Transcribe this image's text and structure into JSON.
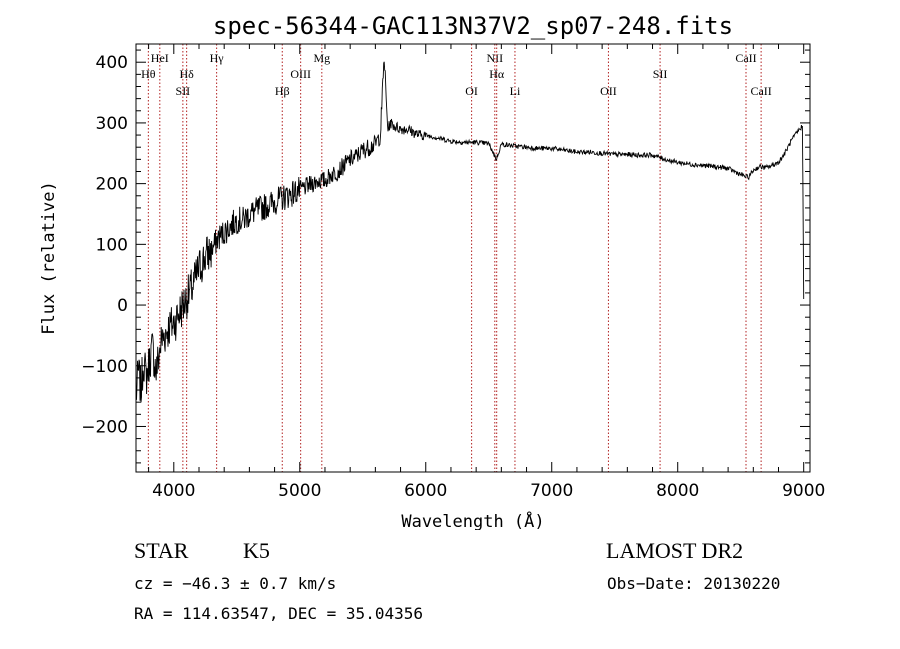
{
  "chart_data": {
    "type": "line",
    "title": "spec-56344-GAC113N37V2_sp07-248.fits",
    "xlabel": "Wavelength (Å)",
    "ylabel": "Flux (relative)",
    "xlim": [
      3700,
      9050
    ],
    "ylim": [
      -275,
      430
    ],
    "xticks": [
      4000,
      5000,
      6000,
      7000,
      8000,
      9000
    ],
    "yticks": [
      -200,
      -100,
      0,
      100,
      200,
      300,
      400
    ],
    "grid": false,
    "series": [
      {
        "x": [
          3700,
          3720,
          3740,
          3760,
          3780,
          3800,
          3830,
          3860,
          3900,
          3950,
          4000,
          4050,
          4100,
          4150,
          4200,
          4250,
          4300,
          4350,
          4400,
          4450,
          4500,
          4550,
          4600,
          4650,
          4700,
          4750,
          4800,
          4850,
          4900,
          4950,
          5000,
          5050,
          5100,
          5150,
          5200,
          5250,
          5300,
          5350,
          5400,
          5450,
          5500,
          5550,
          5600,
          5640,
          5670,
          5690,
          5700,
          5720,
          5750,
          5800,
          5850,
          5900,
          5950,
          6000,
          6100,
          6200,
          6300,
          6400,
          6500,
          6560,
          6600,
          6700,
          6800,
          6900,
          7000,
          7100,
          7200,
          7300,
          7400,
          7500,
          7600,
          7700,
          7800,
          7900,
          8000,
          8100,
          8200,
          8300,
          8400,
          8500,
          8560,
          8600,
          8650,
          8700,
          8750,
          8800,
          8850,
          8900,
          8950,
          8990,
          9000
        ],
        "values": [
          -150,
          -110,
          -140,
          -90,
          -120,
          -100,
          -70,
          -110,
          -60,
          -40,
          -30,
          -10,
          10,
          30,
          60,
          80,
          90,
          110,
          120,
          130,
          140,
          140,
          150,
          155,
          160,
          165,
          170,
          175,
          180,
          185,
          190,
          195,
          200,
          205,
          205,
          215,
          220,
          230,
          240,
          245,
          255,
          260,
          265,
          280,
          410,
          320,
          290,
          300,
          295,
          290,
          290,
          285,
          280,
          280,
          275,
          270,
          268,
          268,
          266,
          240,
          265,
          262,
          260,
          258,
          258,
          255,
          252,
          252,
          250,
          248,
          248,
          247,
          247,
          240,
          235,
          232,
          230,
          228,
          225,
          215,
          210,
          222,
          228,
          226,
          230,
          235,
          250,
          270,
          285,
          295,
          10
        ]
      }
    ],
    "lines": [
      {
        "label": "Hθ",
        "wl": 3798,
        "row": 2
      },
      {
        "label": "HeI",
        "wl": 3889,
        "row": 1
      },
      {
        "label": "SII",
        "wl": 4072,
        "row": 3
      },
      {
        "label": "Hδ",
        "wl": 4102,
        "row": 2
      },
      {
        "label": "Hγ",
        "wl": 4340,
        "row": 1
      },
      {
        "label": "Hβ",
        "wl": 4861,
        "row": 3
      },
      {
        "label": "OIII",
        "wl": 5007,
        "row": 2
      },
      {
        "label": "Mg",
        "wl": 5175,
        "row": 1
      },
      {
        "label": "OI",
        "wl": 6364,
        "row": 3
      },
      {
        "label": "NII",
        "wl": 6548,
        "row": 1
      },
      {
        "label": "Hα",
        "wl": 6563,
        "row": 2
      },
      {
        "label": "Li",
        "wl": 6708,
        "row": 3
      },
      {
        "label": "OII",
        "wl": 7450,
        "row": 3
      },
      {
        "label": "SII",
        "wl": 7860,
        "row": 2
      },
      {
        "label": "CaII",
        "wl": 8542,
        "row": 1
      },
      {
        "label": "CaII",
        "wl": 8662,
        "row": 3
      }
    ]
  },
  "info": {
    "class": "STAR",
    "subclass": "K5",
    "survey": "LAMOST DR2",
    "cz": "cz = −46.3 ± 0.7 km/s",
    "obs_date": "Obs−Date: 20130220",
    "coords": "RA = 114.63547, DEC =  35.04356"
  },
  "colors": {
    "spectrum": "#000000",
    "line_markers": "#b22222",
    "axes": "#000000"
  }
}
